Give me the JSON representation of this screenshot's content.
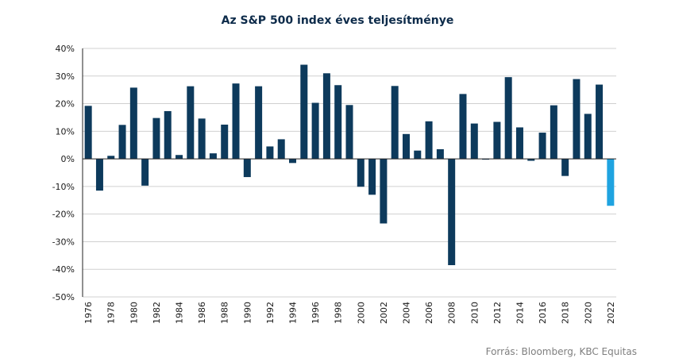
{
  "chart_data": {
    "type": "bar",
    "title": "Az S&P 500 index éves teljesítménye",
    "xlabel": "",
    "ylabel": "",
    "ylim": [
      -50,
      40
    ],
    "yticks": [
      "40%",
      "30%",
      "20%",
      "10%",
      "0%",
      "-10%",
      "-20%",
      "-30%",
      "-40%",
      "-50%"
    ],
    "ytick_values": [
      40,
      30,
      20,
      10,
      0,
      -10,
      -20,
      -30,
      -40,
      -50
    ],
    "grid": true,
    "categories": [
      "1976",
      "1977",
      "1978",
      "1979",
      "1980",
      "1981",
      "1982",
      "1983",
      "1984",
      "1985",
      "1986",
      "1987",
      "1988",
      "1989",
      "1990",
      "1991",
      "1992",
      "1993",
      "1994",
      "1995",
      "1996",
      "1997",
      "1998",
      "1999",
      "2000",
      "2001",
      "2002",
      "2003",
      "2004",
      "2005",
      "2006",
      "2007",
      "2008",
      "2009",
      "2010",
      "2011",
      "2012",
      "2013",
      "2014",
      "2015",
      "2016",
      "2017",
      "2018",
      "2019",
      "2020",
      "2021",
      "2022"
    ],
    "xtick_labels": [
      "1976",
      "1978",
      "1980",
      "1982",
      "1984",
      "1986",
      "1988",
      "1990",
      "1992",
      "1994",
      "1996",
      "1998",
      "2000",
      "2002",
      "2004",
      "2006",
      "2008",
      "2010",
      "2012",
      "2014",
      "2016",
      "2018",
      "2020",
      "2022"
    ],
    "values": [
      19.2,
      -11.5,
      1.1,
      12.3,
      25.8,
      -9.7,
      14.8,
      17.3,
      1.4,
      26.3,
      14.6,
      2.0,
      12.4,
      27.3,
      -6.6,
      26.3,
      4.5,
      7.1,
      -1.5,
      34.1,
      20.3,
      31.0,
      26.7,
      19.5,
      -10.1,
      -13.0,
      -23.4,
      26.4,
      9.0,
      3.0,
      13.6,
      3.5,
      -38.5,
      23.5,
      12.8,
      -0.0,
      13.4,
      29.6,
      11.4,
      -0.7,
      9.5,
      19.4,
      -6.2,
      28.9,
      16.3,
      26.9,
      -17.0
    ],
    "colors": {
      "default": "#0d3a5c",
      "highlight": "#1fa3e0",
      "grid": "#d0d0d0",
      "axis": "#222222"
    },
    "highlight_category": "2022"
  },
  "source": "Forrás: Bloomberg, KBC Equitas"
}
